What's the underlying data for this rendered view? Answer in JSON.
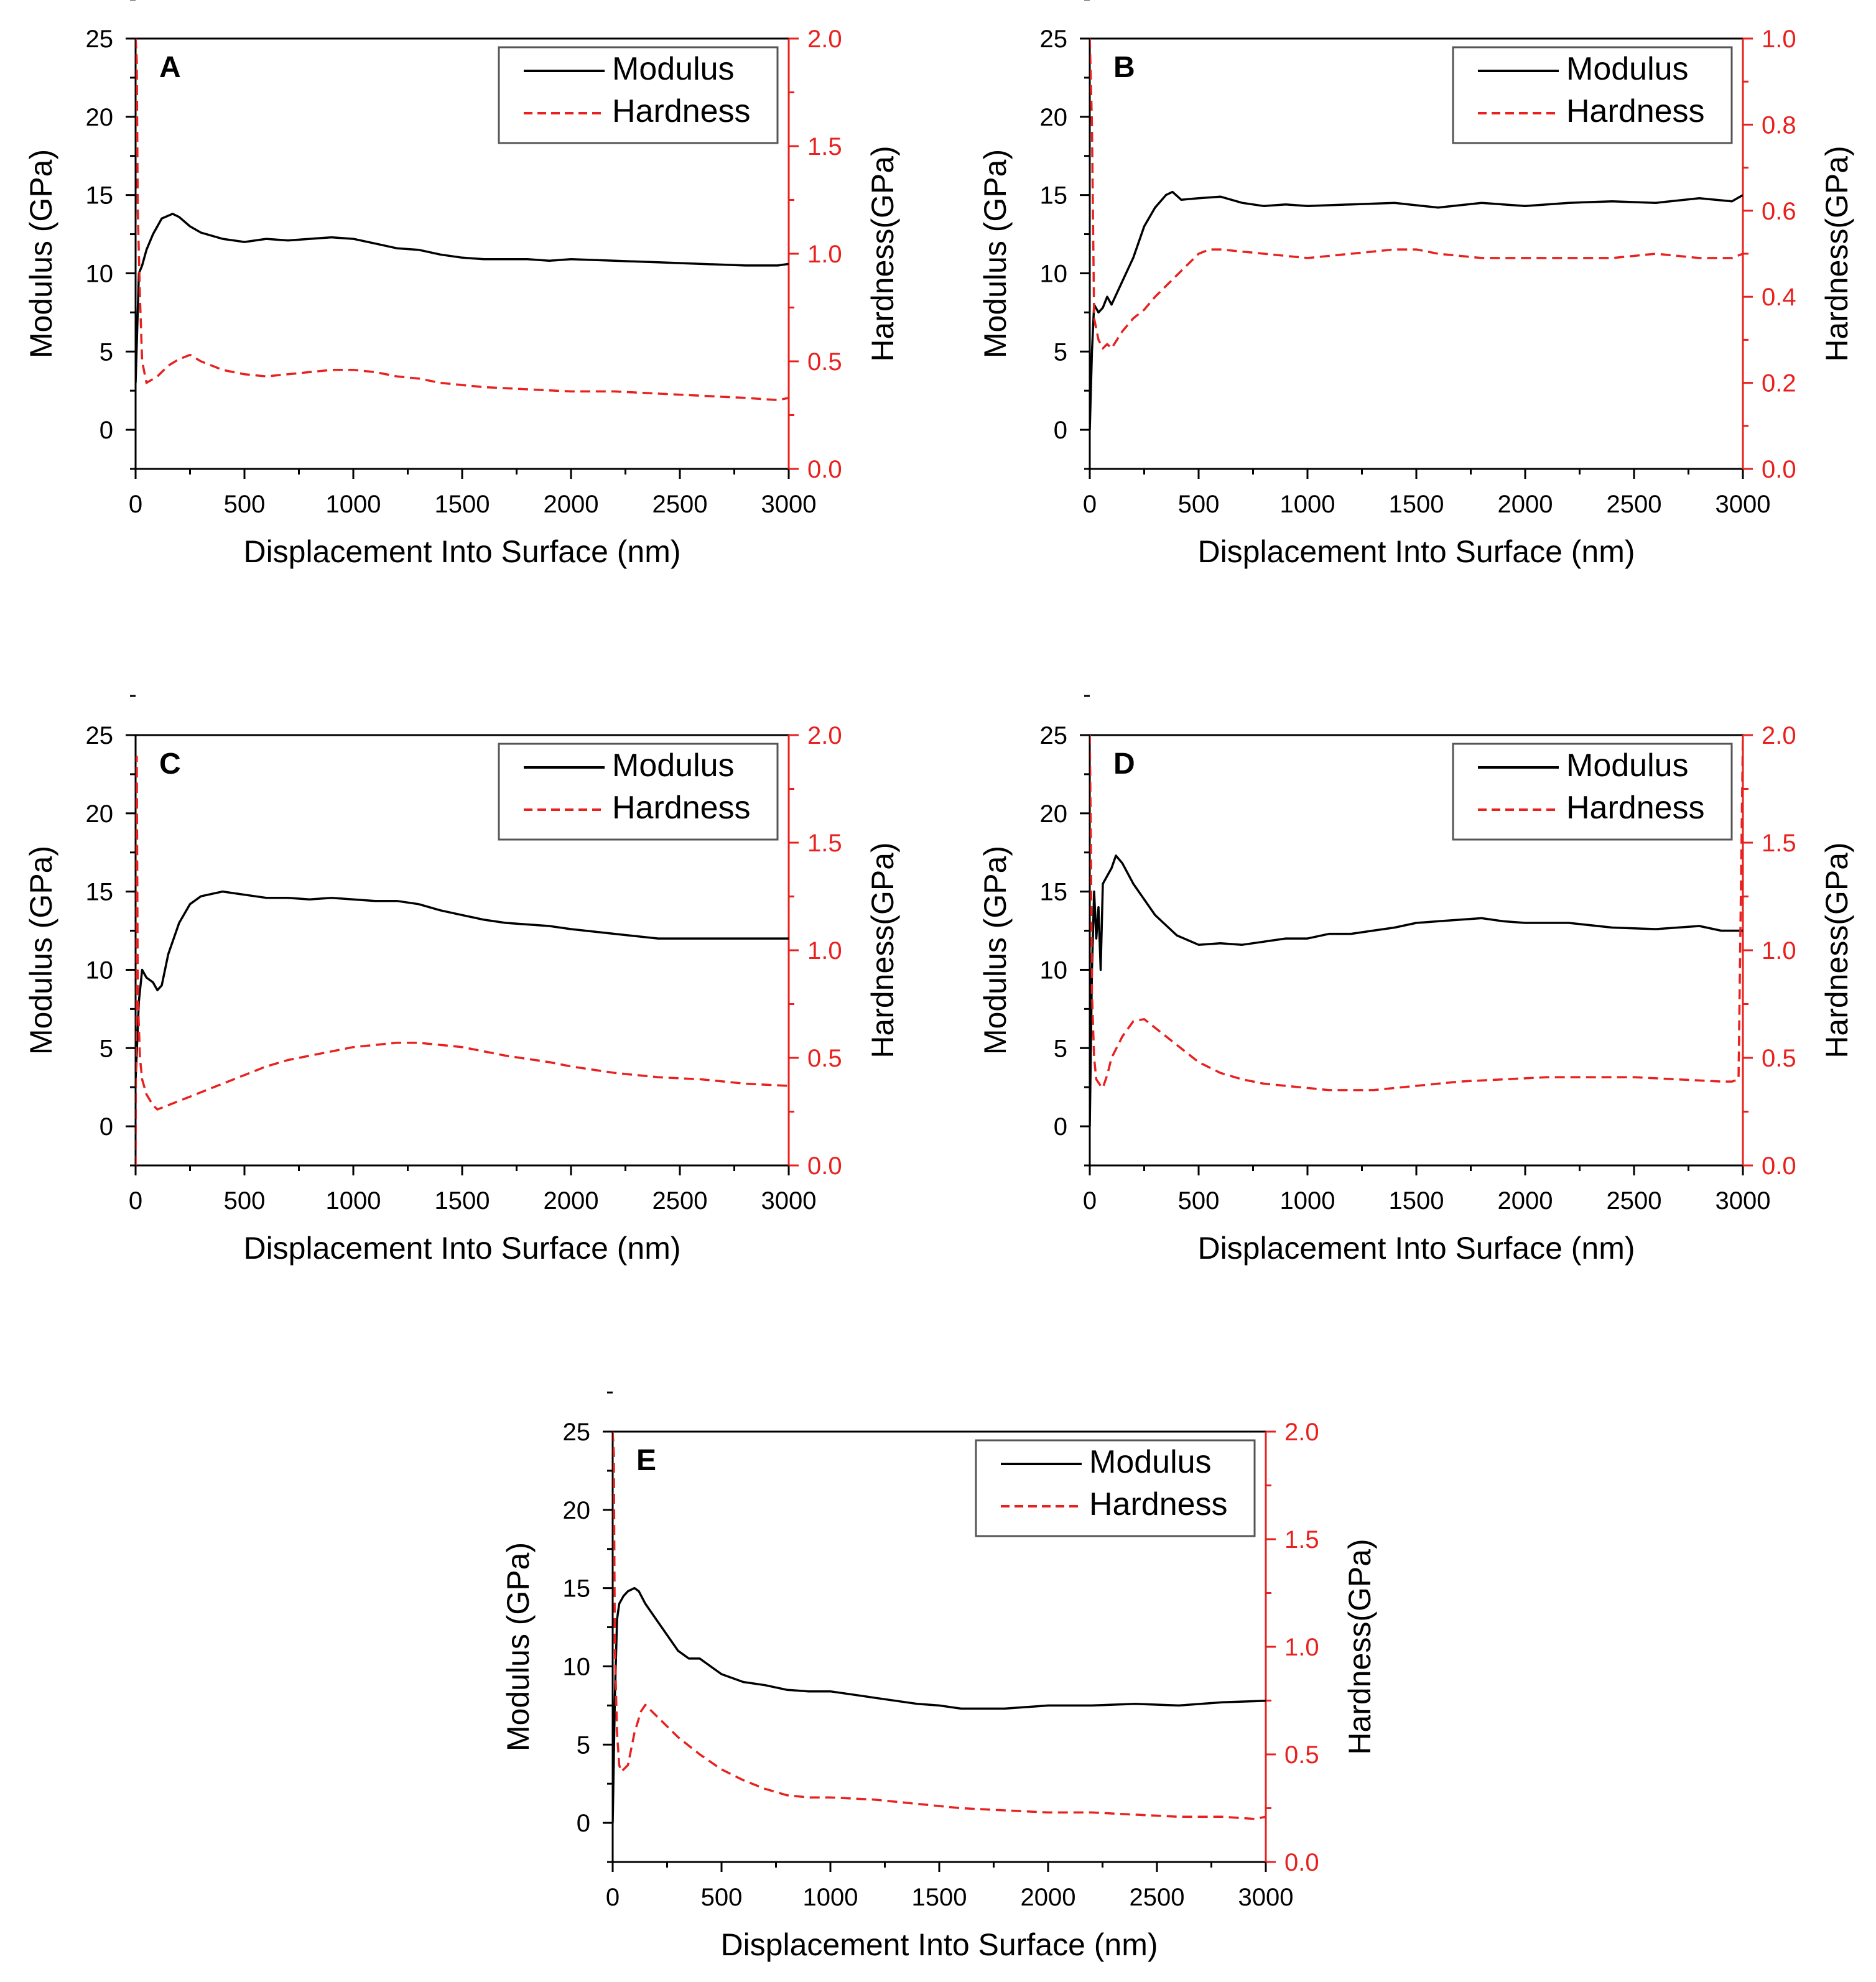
{
  "colors": {
    "modulus": "#000000",
    "hardness": "#e8201e",
    "frame": "#000000",
    "legend_border": "#555555"
  },
  "chart_data": [
    {
      "panel": "A",
      "type": "line",
      "xlabel": "Displacement Into Surface (nm)",
      "ylabel": "Modulus (GPa)",
      "y2label": "Hardness(GPa)",
      "xlim": [
        0,
        3000
      ],
      "ylim": [
        -2.5,
        25
      ],
      "y2lim": [
        0,
        2.0
      ],
      "xticks": [
        "0",
        "500",
        "1000",
        "1500",
        "2000",
        "2500",
        "3000"
      ],
      "yticks": [
        "0",
        "5",
        "10",
        "15",
        "20",
        "25"
      ],
      "y2ticks": [
        "0.0",
        "0.5",
        "1.0",
        "1.5",
        "2.0"
      ],
      "legend": [
        "Modulus",
        "Hardness"
      ],
      "legend_position": "top-right",
      "series": [
        {
          "name": "Modulus",
          "axis": "left",
          "style": "solid",
          "x": [
            0,
            15,
            30,
            50,
            80,
            120,
            170,
            200,
            250,
            300,
            400,
            500,
            600,
            700,
            800,
            900,
            1000,
            1100,
            1200,
            1300,
            1400,
            1500,
            1600,
            1700,
            1800,
            1900,
            2000,
            2200,
            2400,
            2600,
            2800,
            2950,
            3000
          ],
          "y": [
            3,
            10,
            10.5,
            11.5,
            12.5,
            13.5,
            13.8,
            13.6,
            13,
            12.6,
            12.2,
            12,
            12.2,
            12.1,
            12.2,
            12.3,
            12.2,
            11.9,
            11.6,
            11.5,
            11.2,
            11,
            10.9,
            10.9,
            10.9,
            10.8,
            10.9,
            10.8,
            10.7,
            10.6,
            10.5,
            10.5,
            10.6
          ]
        },
        {
          "name": "Hardness",
          "axis": "right",
          "style": "dashed",
          "x": [
            0,
            5,
            10,
            20,
            30,
            50,
            100,
            150,
            200,
            250,
            300,
            400,
            500,
            600,
            700,
            800,
            900,
            1000,
            1100,
            1200,
            1300,
            1400,
            1500,
            1600,
            1800,
            2000,
            2200,
            2400,
            2600,
            2800,
            2950,
            3000
          ],
          "y": [
            2.0,
            1.9,
            1.2,
            0.8,
            0.5,
            0.4,
            0.43,
            0.48,
            0.51,
            0.53,
            0.5,
            0.46,
            0.44,
            0.43,
            0.44,
            0.45,
            0.46,
            0.46,
            0.45,
            0.43,
            0.42,
            0.4,
            0.39,
            0.38,
            0.37,
            0.36,
            0.36,
            0.35,
            0.34,
            0.33,
            0.32,
            0.33
          ]
        }
      ]
    },
    {
      "panel": "B",
      "type": "line",
      "xlabel": "Displacement Into Surface (nm)",
      "ylabel": "Modulus (GPa)",
      "y2label": "Hardness(GPa)",
      "xlim": [
        0,
        3000
      ],
      "ylim": [
        -2.5,
        25
      ],
      "y2lim": [
        0,
        1.0
      ],
      "xticks": [
        "0",
        "500",
        "1000",
        "1500",
        "2000",
        "2500",
        "3000"
      ],
      "yticks": [
        "0",
        "5",
        "10",
        "15",
        "20",
        "25"
      ],
      "y2ticks": [
        "0.0",
        "0.2",
        "0.4",
        "0.6",
        "0.8",
        "1.0"
      ],
      "legend": [
        "Modulus",
        "Hardness"
      ],
      "legend_position": "top-right",
      "series": [
        {
          "name": "Modulus",
          "axis": "left",
          "style": "solid",
          "x": [
            0,
            10,
            20,
            40,
            60,
            80,
            100,
            150,
            200,
            250,
            300,
            350,
            380,
            420,
            500,
            600,
            700,
            800,
            900,
            1000,
            1200,
            1400,
            1600,
            1800,
            2000,
            2200,
            2400,
            2600,
            2800,
            2950,
            3000
          ],
          "y": [
            0,
            5,
            8,
            7.5,
            7.8,
            8.5,
            8,
            9.5,
            11,
            13,
            14.2,
            15,
            15.2,
            14.7,
            14.8,
            14.9,
            14.5,
            14.3,
            14.4,
            14.3,
            14.4,
            14.5,
            14.2,
            14.5,
            14.3,
            14.5,
            14.6,
            14.5,
            14.8,
            14.6,
            15
          ]
        },
        {
          "name": "Hardness",
          "axis": "right",
          "style": "dashed",
          "x": [
            0,
            10,
            20,
            40,
            60,
            80,
            100,
            150,
            200,
            250,
            300,
            400,
            500,
            550,
            600,
            800,
            1000,
            1200,
            1400,
            1500,
            1600,
            1800,
            2000,
            2200,
            2400,
            2600,
            2800,
            2950,
            3000
          ],
          "y": [
            1.0,
            0.8,
            0.35,
            0.3,
            0.28,
            0.29,
            0.28,
            0.32,
            0.35,
            0.37,
            0.4,
            0.45,
            0.5,
            0.51,
            0.51,
            0.5,
            0.49,
            0.5,
            0.51,
            0.51,
            0.5,
            0.49,
            0.49,
            0.49,
            0.49,
            0.5,
            0.49,
            0.49,
            0.5
          ]
        }
      ]
    },
    {
      "panel": "C",
      "type": "line",
      "xlabel": "Displacement Into Surface (nm)",
      "ylabel": "Modulus (GPa)",
      "y2label": "Hardness(GPa)",
      "xlim": [
        0,
        3000
      ],
      "ylim": [
        -2.5,
        25
      ],
      "y2lim": [
        0,
        2.0
      ],
      "xticks": [
        "0",
        "500",
        "1000",
        "1500",
        "2000",
        "2500",
        "3000"
      ],
      "yticks": [
        "0",
        "5",
        "10",
        "15",
        "20",
        "25"
      ],
      "y2ticks": [
        "0.0",
        "0.5",
        "1.0",
        "1.5",
        "2.0"
      ],
      "legend": [
        "Modulus",
        "Hardness"
      ],
      "legend_position": "top-right",
      "series": [
        {
          "name": "Modulus",
          "axis": "left",
          "style": "solid",
          "x": [
            0,
            15,
            30,
            50,
            80,
            100,
            120,
            150,
            200,
            250,
            300,
            400,
            500,
            600,
            700,
            800,
            900,
            1000,
            1100,
            1200,
            1300,
            1400,
            1500,
            1600,
            1700,
            1800,
            1900,
            2000,
            2200,
            2400,
            2600,
            2800,
            3000
          ],
          "y": [
            3,
            8,
            10,
            9.5,
            9.2,
            8.7,
            9,
            11,
            13,
            14.2,
            14.7,
            15,
            14.8,
            14.6,
            14.6,
            14.5,
            14.6,
            14.5,
            14.4,
            14.4,
            14.2,
            13.8,
            13.5,
            13.2,
            13,
            12.9,
            12.8,
            12.6,
            12.3,
            12,
            12,
            12,
            12
          ]
        },
        {
          "name": "Hardness",
          "axis": "right",
          "style": "dashed",
          "x": [
            0,
            5,
            10,
            20,
            30,
            50,
            80,
            100,
            150,
            200,
            300,
            400,
            500,
            600,
            700,
            800,
            900,
            1000,
            1100,
            1200,
            1300,
            1400,
            1500,
            1700,
            1900,
            2000,
            2200,
            2400,
            2600,
            2800,
            3000
          ],
          "y": [
            0,
            1.9,
            0.8,
            0.5,
            0.4,
            0.33,
            0.28,
            0.26,
            0.28,
            0.3,
            0.34,
            0.38,
            0.42,
            0.46,
            0.49,
            0.51,
            0.53,
            0.55,
            0.56,
            0.57,
            0.57,
            0.56,
            0.55,
            0.51,
            0.48,
            0.46,
            0.43,
            0.41,
            0.4,
            0.38,
            0.37
          ]
        }
      ]
    },
    {
      "panel": "D",
      "type": "line",
      "xlabel": "Displacement Into Surface (nm)",
      "ylabel": "Modulus (GPa)",
      "y2label": "Hardness(GPa)",
      "xlim": [
        0,
        3000
      ],
      "ylim": [
        -2.5,
        25
      ],
      "y2lim": [
        0,
        2.0
      ],
      "xticks": [
        "0",
        "500",
        "1000",
        "1500",
        "2000",
        "2500",
        "3000"
      ],
      "yticks": [
        "0",
        "5",
        "10",
        "15",
        "20",
        "25"
      ],
      "y2ticks": [
        "0.0",
        "0.5",
        "1.0",
        "1.5",
        "2.0"
      ],
      "legend": [
        "Modulus",
        "Hardness"
      ],
      "legend_position": "top-right",
      "series": [
        {
          "name": "Modulus",
          "axis": "left",
          "style": "solid",
          "x": [
            0,
            10,
            20,
            30,
            40,
            50,
            60,
            80,
            100,
            120,
            150,
            200,
            250,
            300,
            400,
            500,
            600,
            700,
            800,
            900,
            1000,
            1100,
            1200,
            1300,
            1400,
            1500,
            1600,
            1700,
            1800,
            1900,
            2000,
            2200,
            2400,
            2600,
            2800,
            2900,
            2950,
            3000
          ],
          "y": [
            0,
            10,
            15,
            12,
            14,
            10,
            15.5,
            16,
            16.5,
            17.3,
            16.8,
            15.5,
            14.5,
            13.5,
            12.2,
            11.6,
            11.7,
            11.6,
            11.8,
            12,
            12,
            12.3,
            12.3,
            12.5,
            12.7,
            13,
            13.1,
            13.2,
            13.3,
            13.1,
            13,
            13,
            12.7,
            12.6,
            12.8,
            12.5,
            12.5,
            12.5
          ]
        },
        {
          "name": "Hardness",
          "axis": "right",
          "style": "dashed",
          "x": [
            0,
            5,
            10,
            20,
            30,
            50,
            60,
            80,
            100,
            150,
            200,
            250,
            300,
            400,
            500,
            600,
            700,
            800,
            900,
            1000,
            1100,
            1200,
            1300,
            1500,
            1700,
            1900,
            2100,
            2300,
            2500,
            2700,
            2900,
            2950,
            2980,
            3000
          ],
          "y": [
            2.0,
            1.5,
            0.8,
            0.5,
            0.4,
            0.37,
            0.36,
            0.42,
            0.5,
            0.6,
            0.67,
            0.68,
            0.64,
            0.56,
            0.48,
            0.43,
            0.4,
            0.38,
            0.37,
            0.36,
            0.35,
            0.35,
            0.35,
            0.37,
            0.39,
            0.4,
            0.41,
            0.41,
            0.41,
            0.4,
            0.39,
            0.39,
            0.4,
            2.0
          ]
        }
      ]
    },
    {
      "panel": "E",
      "type": "line",
      "xlabel": "Displacement Into Surface (nm)",
      "ylabel": "Modulus (GPa)",
      "y2label": "Hardness(GPa)",
      "xlim": [
        0,
        3000
      ],
      "ylim": [
        -2.5,
        25
      ],
      "y2lim": [
        0,
        2.0
      ],
      "xticks": [
        "0",
        "500",
        "1000",
        "1500",
        "2000",
        "2500",
        "3000"
      ],
      "yticks": [
        "0",
        "5",
        "10",
        "15",
        "20",
        "25"
      ],
      "y2ticks": [
        "0.0",
        "0.5",
        "1.0",
        "1.5",
        "2.0"
      ],
      "legend": [
        "Modulus",
        "Hardness"
      ],
      "legend_position": "top-right",
      "series": [
        {
          "name": "Modulus",
          "axis": "left",
          "style": "solid",
          "x": [
            0,
            10,
            20,
            30,
            50,
            70,
            100,
            120,
            150,
            200,
            250,
            300,
            350,
            400,
            450,
            500,
            600,
            700,
            800,
            900,
            1000,
            1100,
            1200,
            1300,
            1400,
            1500,
            1600,
            1700,
            1800,
            1900,
            2000,
            2200,
            2400,
            2600,
            2800,
            3000
          ],
          "y": [
            0,
            8,
            13,
            14,
            14.5,
            14.8,
            15,
            14.8,
            14,
            13,
            12,
            11,
            10.5,
            10.5,
            10,
            9.5,
            9,
            8.8,
            8.5,
            8.4,
            8.4,
            8.2,
            8,
            7.8,
            7.6,
            7.5,
            7.3,
            7.3,
            7.3,
            7.4,
            7.5,
            7.5,
            7.6,
            7.5,
            7.7,
            7.8
          ]
        },
        {
          "name": "Hardness",
          "axis": "right",
          "style": "dashed",
          "x": [
            0,
            5,
            10,
            20,
            30,
            40,
            50,
            70,
            100,
            130,
            150,
            200,
            300,
            400,
            500,
            600,
            700,
            800,
            900,
            1000,
            1200,
            1400,
            1600,
            1800,
            2000,
            2200,
            2400,
            2600,
            2800,
            2950,
            3000
          ],
          "y": [
            2.0,
            1.9,
            1.0,
            0.6,
            0.45,
            0.42,
            0.43,
            0.45,
            0.6,
            0.7,
            0.73,
            0.68,
            0.58,
            0.5,
            0.43,
            0.38,
            0.34,
            0.31,
            0.3,
            0.3,
            0.29,
            0.27,
            0.25,
            0.24,
            0.23,
            0.23,
            0.22,
            0.21,
            0.21,
            0.2,
            0.21
          ]
        }
      ]
    }
  ]
}
